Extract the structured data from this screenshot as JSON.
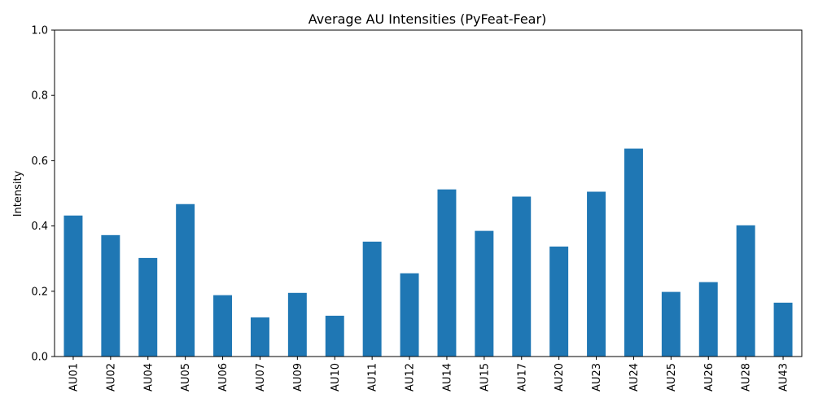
{
  "chart_data": {
    "type": "bar",
    "title": "Average AU Intensities (PyFeat-Fear)",
    "xlabel": "",
    "ylabel": "Intensity",
    "ylim": [
      0,
      1.0
    ],
    "yticks": [
      "0.0",
      "0.2",
      "0.4",
      "0.6",
      "0.8",
      "1.0"
    ],
    "grid": false,
    "legend": "none",
    "categories": [
      "AU01",
      "AU02",
      "AU04",
      "AU05",
      "AU06",
      "AU07",
      "AU09",
      "AU10",
      "AU11",
      "AU12",
      "AU14",
      "AU15",
      "AU17",
      "AU20",
      "AU23",
      "AU24",
      "AU25",
      "AU26",
      "AU28",
      "AU43"
    ],
    "values": [
      0.432,
      0.372,
      0.302,
      0.467,
      0.188,
      0.12,
      0.195,
      0.125,
      0.352,
      0.255,
      0.512,
      0.385,
      0.49,
      0.337,
      0.505,
      0.637,
      0.198,
      0.228,
      0.402,
      0.165
    ],
    "bar_color": "#1f77b4"
  }
}
